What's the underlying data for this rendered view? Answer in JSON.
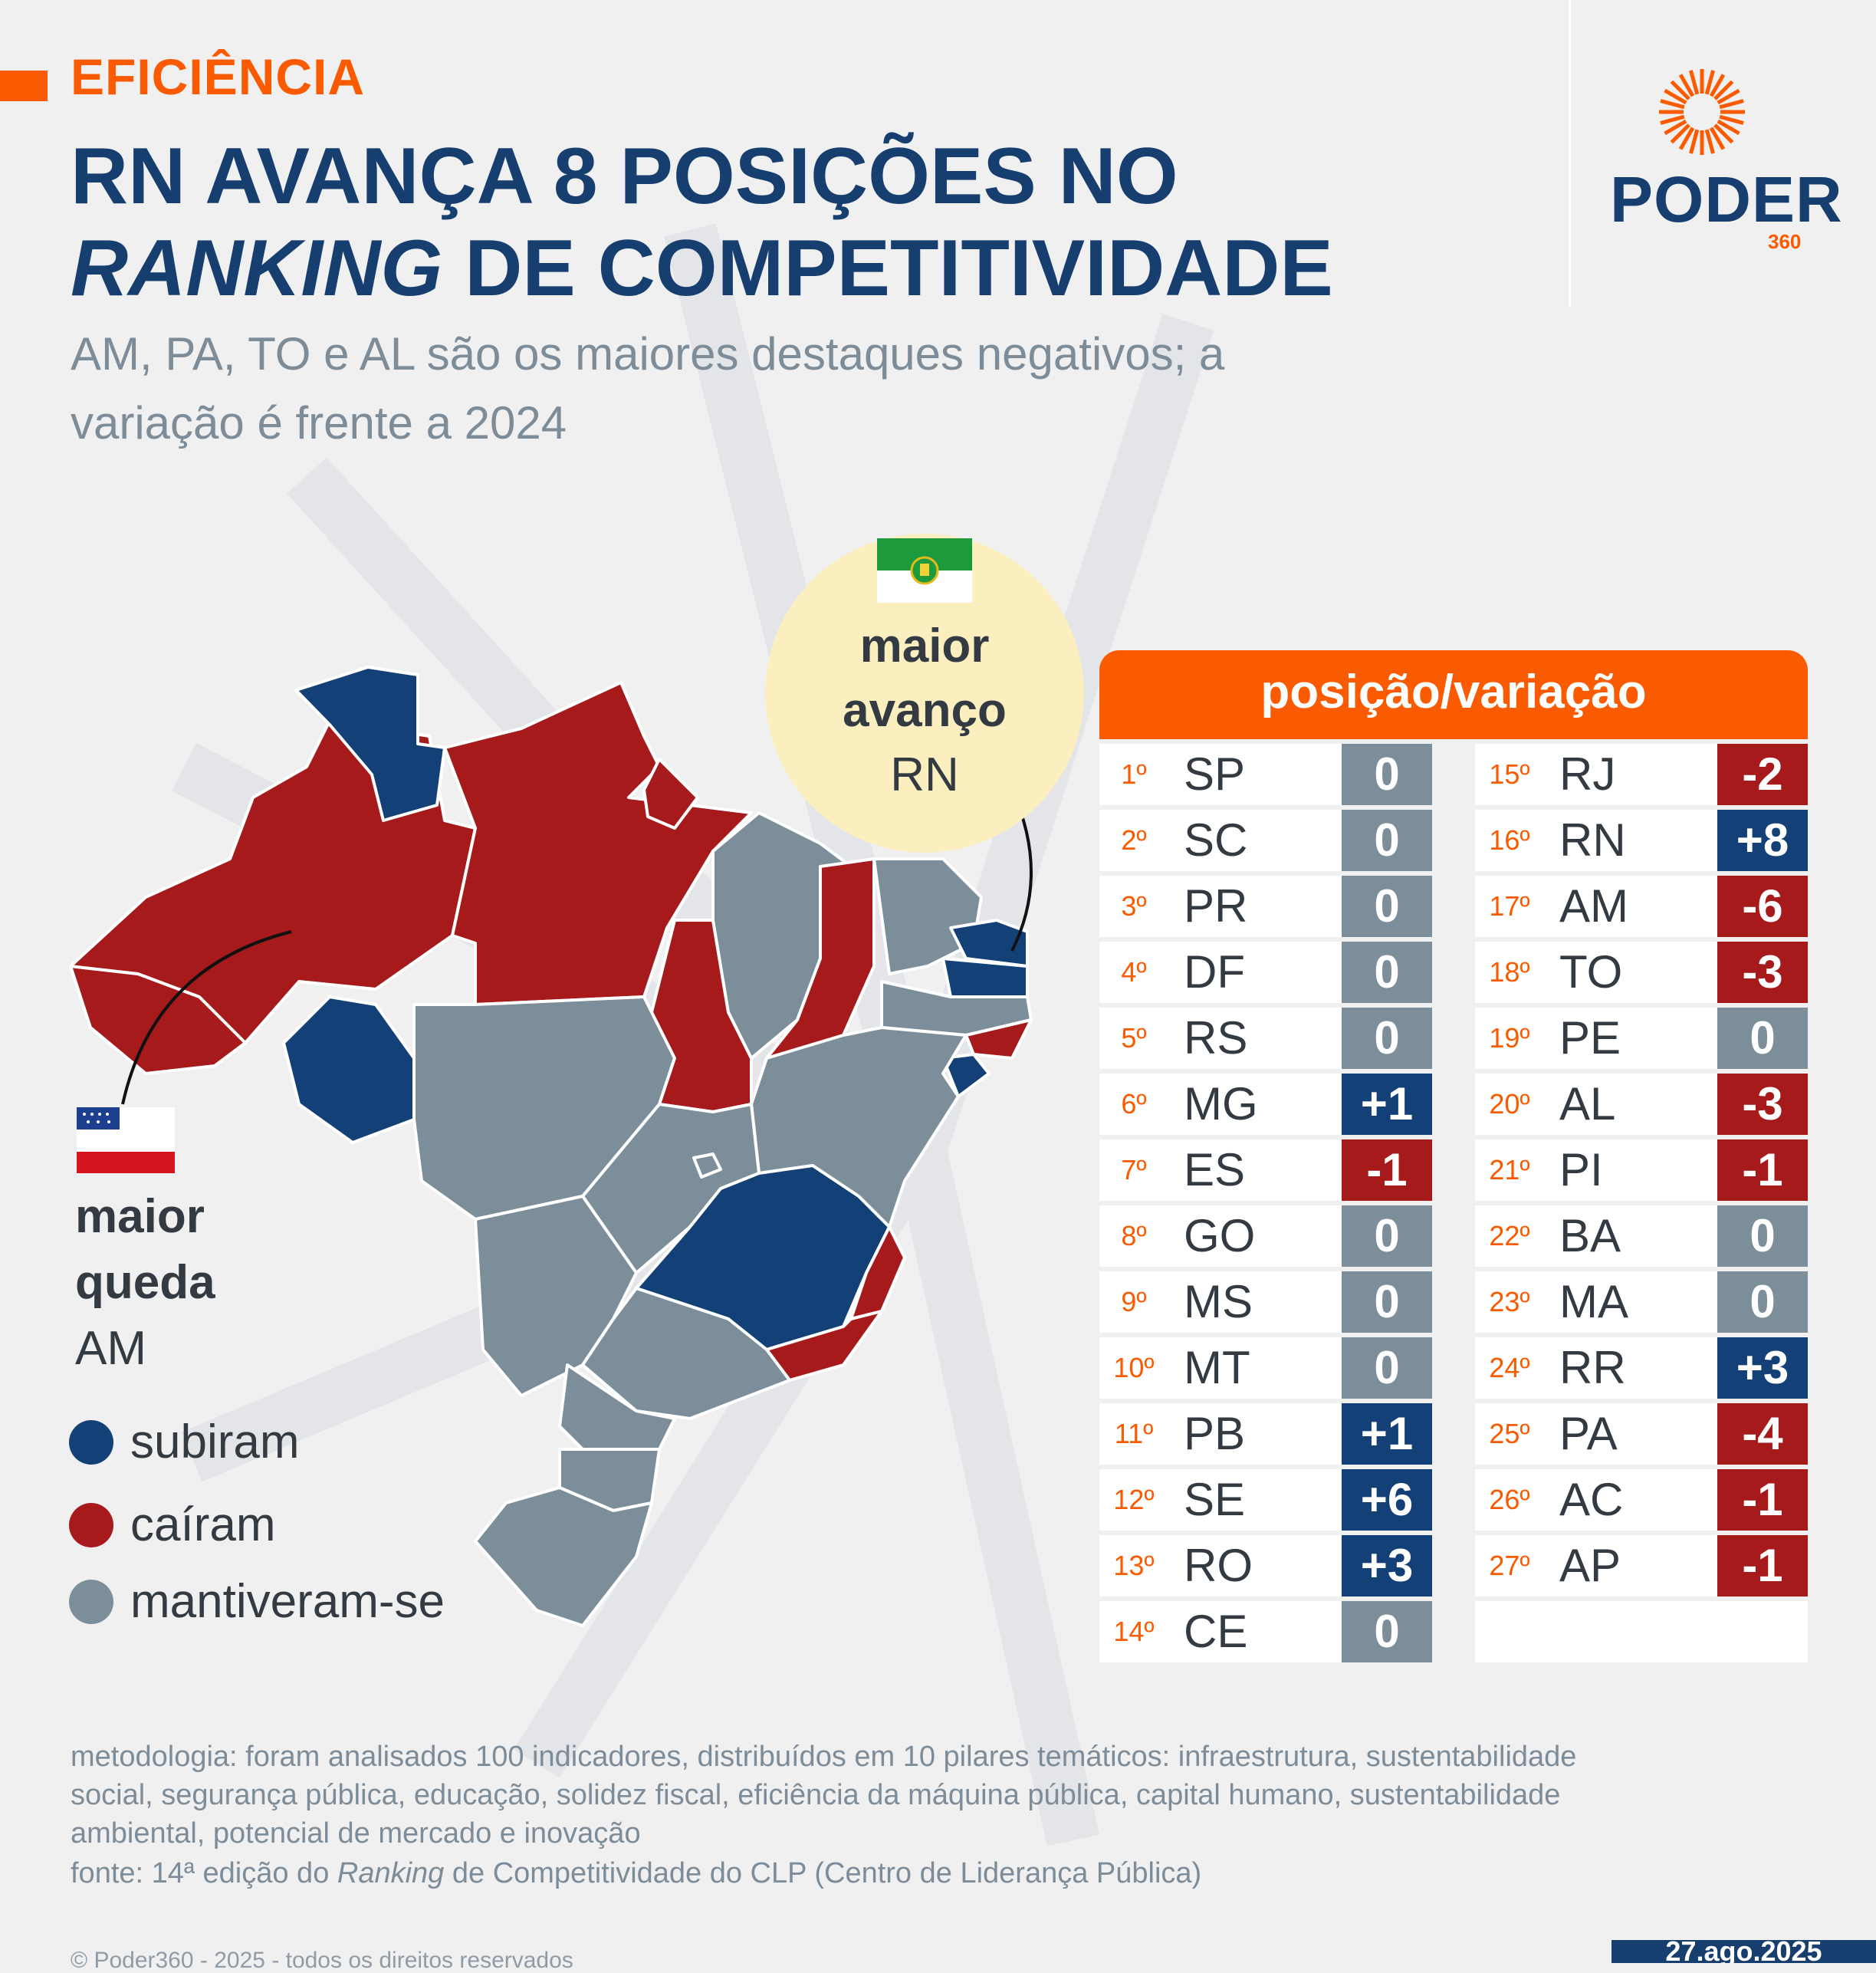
{
  "kicker": "EFICIÊNCIA",
  "title_line1": "RN AVANÇA 8 POSIÇÕES NO",
  "title_line2_italic": "RANKING",
  "title_line2_rest": " DE COMPETITIVIDADE",
  "subtitle_line1": "AM, PA, TO e AL são os maiores destaques negativos; a",
  "subtitle_line2": "variação é frente a 2024",
  "logo": {
    "word": "PODER",
    "number": "360"
  },
  "colors": {
    "orange": "#fa5a00",
    "blue": "#163e6e",
    "red": "#a61a1c",
    "gray": "#7d8c99",
    "subiram": "#134177",
    "cairam": "#a61a1c",
    "mantiveram": "#7b8e9a",
    "bubble": "#fbefc0"
  },
  "callout_top": {
    "line1": "maior",
    "line2": "avanço",
    "state": "RN",
    "flag": "flag-rio-grande-do-norte"
  },
  "callout_side": {
    "line1": "maior",
    "line2": "queda",
    "state": "AM",
    "flag": "flag-amazonas"
  },
  "legend": [
    {
      "label": "subiram",
      "color": "#134177"
    },
    {
      "label": "caíram",
      "color": "#a61a1c"
    },
    {
      "label": "mantiveram-se",
      "color": "#7b8e9a"
    }
  ],
  "table": {
    "header": "posição/variação",
    "rows": [
      {
        "pos": "1º",
        "state": "SP",
        "change": "0"
      },
      {
        "pos": "2º",
        "state": "SC",
        "change": "0"
      },
      {
        "pos": "3º",
        "state": "PR",
        "change": "0"
      },
      {
        "pos": "4º",
        "state": "DF",
        "change": "0"
      },
      {
        "pos": "5º",
        "state": "RS",
        "change": "0"
      },
      {
        "pos": "6º",
        "state": "MG",
        "change": "+1"
      },
      {
        "pos": "7º",
        "state": "ES",
        "change": "-1"
      },
      {
        "pos": "8º",
        "state": "GO",
        "change": "0"
      },
      {
        "pos": "9º",
        "state": "MS",
        "change": "0"
      },
      {
        "pos": "10º",
        "state": "MT",
        "change": "0"
      },
      {
        "pos": "11º",
        "state": "PB",
        "change": "+1"
      },
      {
        "pos": "12º",
        "state": "SE",
        "change": "+6"
      },
      {
        "pos": "13º",
        "state": "RO",
        "change": "+3"
      },
      {
        "pos": "14º",
        "state": "CE",
        "change": "0"
      },
      {
        "pos": "15º",
        "state": "RJ",
        "change": "-2"
      },
      {
        "pos": "16º",
        "state": "RN",
        "change": "+8"
      },
      {
        "pos": "17º",
        "state": "AM",
        "change": "-6"
      },
      {
        "pos": "18º",
        "state": "TO",
        "change": "-3"
      },
      {
        "pos": "19º",
        "state": "PE",
        "change": "0"
      },
      {
        "pos": "20º",
        "state": "AL",
        "change": "-3"
      },
      {
        "pos": "21º",
        "state": "PI",
        "change": "-1"
      },
      {
        "pos": "22º",
        "state": "BA",
        "change": "0"
      },
      {
        "pos": "23º",
        "state": "MA",
        "change": "0"
      },
      {
        "pos": "24º",
        "state": "RR",
        "change": "+3"
      },
      {
        "pos": "25º",
        "state": "PA",
        "change": "-4"
      },
      {
        "pos": "26º",
        "state": "AC",
        "change": "-1"
      },
      {
        "pos": "27º",
        "state": "AP",
        "change": "-1"
      }
    ]
  },
  "methodology": [
    "metodologia: foram analisados 100 indicadores, distribuídos em 10 pilares temáticos: infraestrutura, sustentabilidade",
    "social, segurança pública, educação, solidez fiscal, eficiência da máquina pública, capital humano, sustentabilidade",
    "ambiental, potencial de mercado e inovação"
  ],
  "source": {
    "prefix": "fonte: 14ª edição do ",
    "italic": "Ranking",
    "suffix": " de Competitividade do CLP (Centro de Liderança Pública)"
  },
  "copyright": "© Poder360 - 2025 - todos os direitos reservados",
  "date": "27.ago.2025"
}
